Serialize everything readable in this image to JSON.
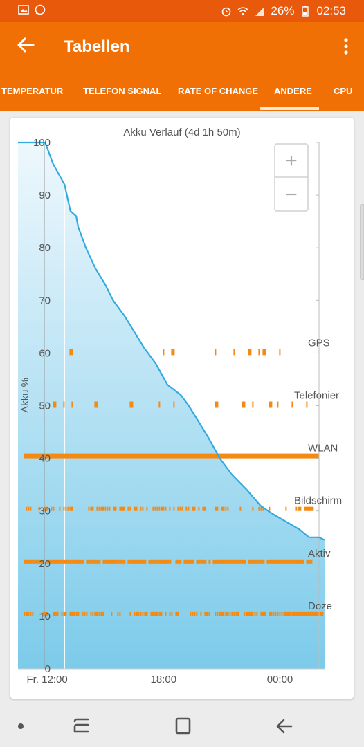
{
  "statusbar": {
    "battery": "26%",
    "time": "02:53"
  },
  "appbar": {
    "title": "Tabellen"
  },
  "tabs": [
    {
      "label": "TEMPERATUR"
    },
    {
      "label": "TELEFON SIGNAL"
    },
    {
      "label": "RATE OF CHANGE"
    },
    {
      "label": "ANDERE",
      "active": true
    },
    {
      "label": "CPU"
    }
  ],
  "colors": {
    "accent": "#f07006",
    "statusbar": "#e8590c",
    "line": "#33aadd",
    "fill_top": "#eef8fd",
    "fill_bottom": "#7ccbea",
    "bars": "#f58a12"
  },
  "zoom": {
    "plus": "+",
    "minus": "−"
  },
  "chart_data": {
    "type": "area",
    "title": "Akku Verlauf (4d 1h 50m)",
    "ylabel": "Akku %",
    "xlabel": "",
    "ylim": [
      0,
      100
    ],
    "yticks": [
      0,
      10,
      20,
      30,
      40,
      50,
      60,
      70,
      80,
      90,
      100
    ],
    "xtick_labels": [
      "Fr. 12:00",
      "18:00",
      "00:00"
    ],
    "xtick_hours": [
      0,
      6,
      12
    ],
    "xlim_hours": [
      -1.5,
      14.3
    ],
    "grid": false,
    "series": [
      {
        "values_hours": [
          -1.5,
          -0.1,
          0.3,
          0.9,
          1.2,
          1.5,
          1.6,
          2.0,
          2.5,
          3.0,
          3.4,
          4.0,
          4.5,
          5.0,
          5.6,
          6.2,
          6.9,
          7.3,
          7.8,
          8.3,
          8.9,
          9.5,
          10.3,
          11.0,
          11.6,
          12.3,
          13.0,
          13.5,
          14.0,
          14.3
        ],
        "values": [
          100,
          100,
          96,
          92,
          87,
          86,
          84,
          80,
          76,
          73,
          70,
          67,
          64,
          61,
          58,
          54,
          52,
          50,
          47,
          44,
          40,
          37,
          34,
          31,
          29.5,
          28,
          26.5,
          25,
          25,
          24.5
        ]
      }
    ],
    "event_rows": [
      {
        "label": "GPS",
        "level": 60
      },
      {
        "label": "Telefonier",
        "level": 50
      },
      {
        "label": "WLAN",
        "level": 40
      },
      {
        "label": "Bildschirm",
        "level": 30
      },
      {
        "label": "Aktiv",
        "level": 20
      },
      {
        "label": "Doze",
        "level": 10
      }
    ]
  }
}
